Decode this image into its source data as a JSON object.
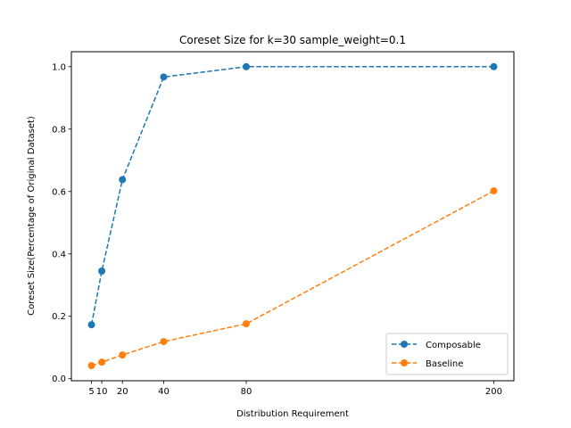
{
  "chart_data": {
    "type": "line",
    "title": "Coreset Size for k=30 sample_weight=0.1",
    "xlabel": "Distribution Requirement",
    "ylabel": "Coreset Size(Percentage of Original Dataset)",
    "x": [
      5,
      10,
      20,
      40,
      80,
      200
    ],
    "x_tick_labels": [
      "5",
      "10",
      "20",
      "40",
      "80",
      "200"
    ],
    "y_ticks": [
      0.0,
      0.2,
      0.4,
      0.6,
      0.8,
      1.0
    ],
    "y_tick_labels": [
      "0.0",
      "0.2",
      "0.4",
      "0.6",
      "0.8",
      "1.0"
    ],
    "xlim": [
      -4.75,
      209.75
    ],
    "ylim": [
      -0.0065,
      1.048
    ],
    "grid": false,
    "legend_position": "lower-right",
    "series": [
      {
        "name": "Composable",
        "color": "#1f77b4",
        "linestyle": "dashed",
        "marker": "circle",
        "values": [
          0.173,
          0.345,
          0.638,
          0.967,
          1.0,
          1.0
        ]
      },
      {
        "name": "Baseline",
        "color": "#ff7f0e",
        "linestyle": "dashed",
        "marker": "circle",
        "values": [
          0.042,
          0.053,
          0.076,
          0.119,
          0.176,
          0.602
        ]
      }
    ]
  }
}
